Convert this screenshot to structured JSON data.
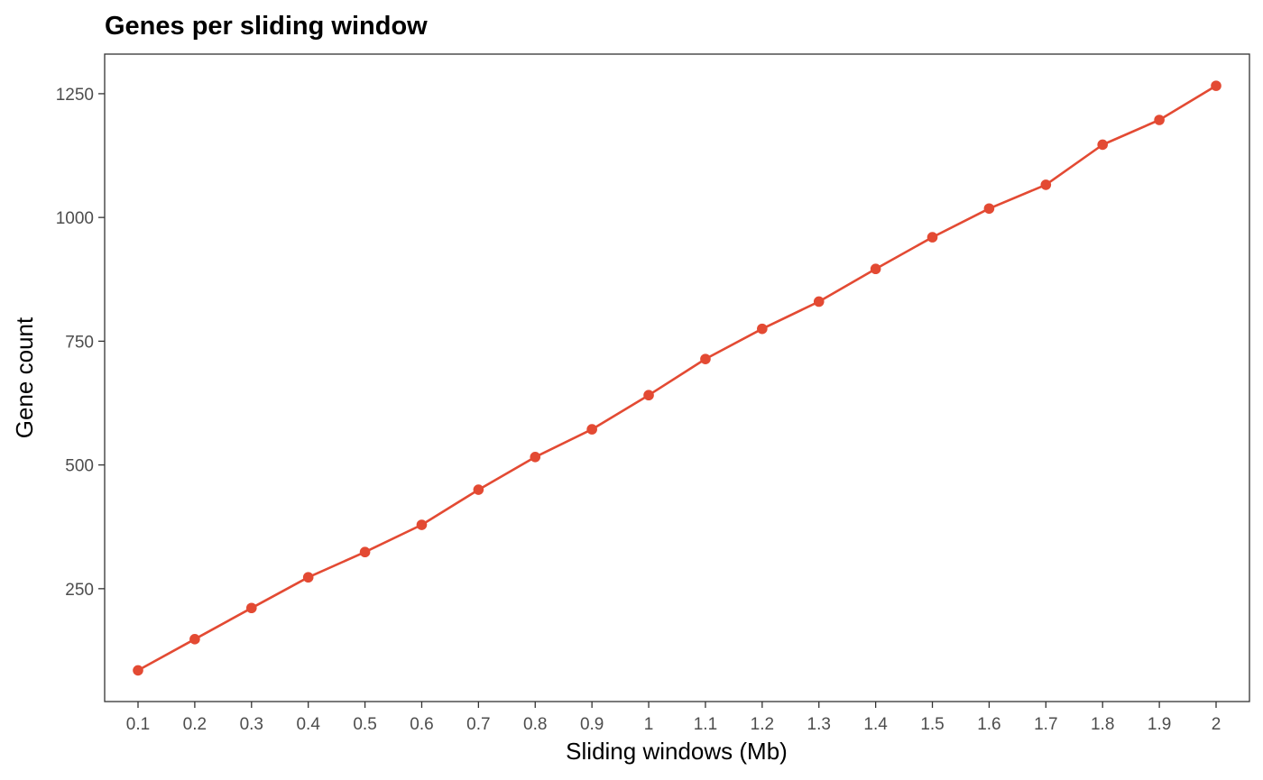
{
  "chart_data": {
    "type": "line",
    "title": "Genes per sliding window",
    "xlabel": "Sliding windows (Mb)",
    "ylabel": "Gene count",
    "categories": [
      "0.1",
      "0.2",
      "0.3",
      "0.4",
      "0.5",
      "0.6",
      "0.7",
      "0.8",
      "0.9",
      "1",
      "1.1",
      "1.2",
      "1.3",
      "1.4",
      "1.5",
      "1.6",
      "1.7",
      "1.8",
      "1.9",
      "2"
    ],
    "values": [
      85,
      148,
      211,
      273,
      324,
      379,
      450,
      516,
      572,
      641,
      714,
      775,
      830,
      896,
      960,
      1018,
      1066,
      1147,
      1197,
      1266
    ],
    "yticks": [
      250,
      500,
      750,
      1000,
      1250
    ],
    "ylim": [
      22,
      1330
    ],
    "grid": false,
    "legend": "none",
    "color": "#e34a33"
  }
}
